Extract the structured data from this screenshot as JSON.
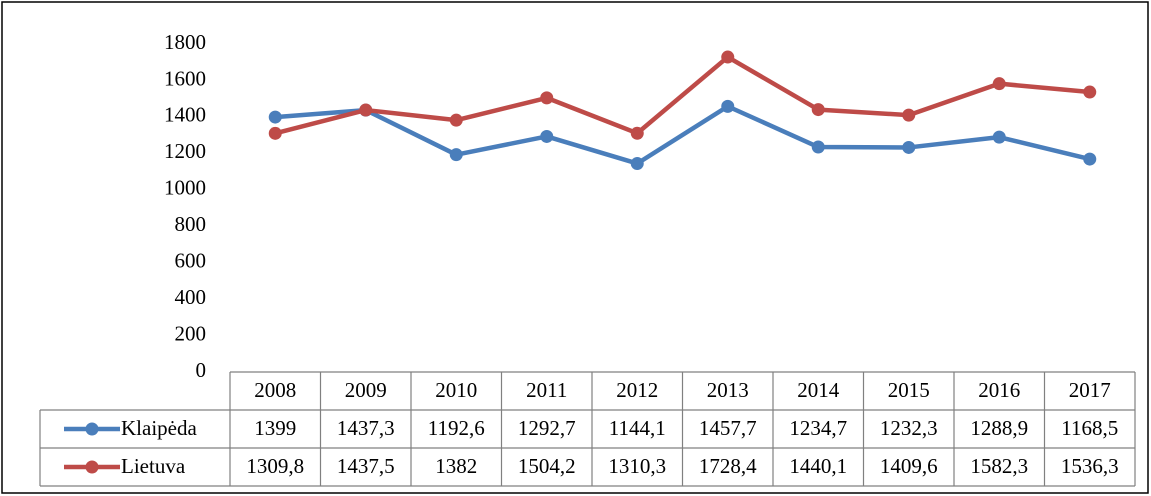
{
  "chart_data": {
    "type": "line",
    "categories": [
      "2008",
      "2009",
      "2010",
      "2011",
      "2012",
      "2013",
      "2014",
      "2015",
      "2016",
      "2017"
    ],
    "series": [
      {
        "name": "Klaipėda",
        "color": "#4a7ebb",
        "values": [
          1399,
          1437.3,
          1192.6,
          1292.7,
          1144.1,
          1457.7,
          1234.7,
          1232.3,
          1288.9,
          1168.5
        ],
        "value_labels": [
          "1399",
          "1437,3",
          "1192,6",
          "1292,7",
          "1144,1",
          "1457,7",
          "1234,7",
          "1232,3",
          "1288,9",
          "1168,5"
        ]
      },
      {
        "name": "Lietuva",
        "color": "#be4b48",
        "values": [
          1309.8,
          1437.5,
          1382,
          1504.2,
          1310.3,
          1728.4,
          1440.1,
          1409.6,
          1582.3,
          1536.3
        ],
        "value_labels": [
          "1309,8",
          "1437,5",
          "1382",
          "1504,2",
          "1310,3",
          "1728,4",
          "1440,1",
          "1409,6",
          "1582,3",
          "1536,3"
        ]
      }
    ],
    "ylim": [
      0,
      1800
    ],
    "yticks": [
      0,
      200,
      400,
      600,
      800,
      1000,
      1200,
      1400,
      1600,
      1800
    ],
    "grid": false,
    "data_table": true
  }
}
